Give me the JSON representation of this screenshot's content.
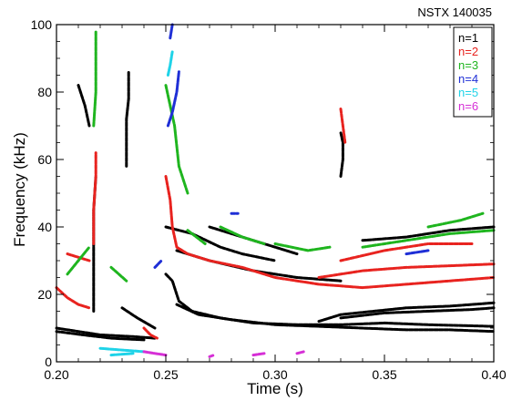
{
  "chart_data": {
    "type": "scatter",
    "shot_label": "NSTX  140035",
    "xlabel": "Time (s)",
    "ylabel": "Frequency (kHz)",
    "xlim": [
      0.2,
      0.4
    ],
    "ylim": [
      0,
      100
    ],
    "xticks": [
      0.2,
      0.25,
      0.3,
      0.35,
      0.4
    ],
    "xtick_labels": [
      "0.20",
      "0.25",
      "0.30",
      "0.35",
      "0.40"
    ],
    "yticks": [
      0,
      20,
      40,
      60,
      80,
      100
    ],
    "ytick_labels": [
      "0",
      "20",
      "40",
      "60",
      "80",
      "100"
    ],
    "grid": false,
    "legend_position": "top-right",
    "series": [
      {
        "name": "n=1",
        "color": "#000000",
        "traces": [
          [
            [
              0.2,
              10
            ],
            [
              0.21,
              9
            ],
            [
              0.22,
              8
            ],
            [
              0.235,
              7.5
            ],
            [
              0.245,
              7
            ]
          ],
          [
            [
              0.2,
              9
            ],
            [
              0.212,
              8
            ],
            [
              0.225,
              7
            ],
            [
              0.24,
              6.5
            ]
          ],
          [
            [
              0.25,
              26
            ],
            [
              0.253,
              24
            ],
            [
              0.256,
              18
            ],
            [
              0.262,
              15
            ],
            [
              0.275,
              13
            ],
            [
              0.29,
              11.5
            ],
            [
              0.31,
              11
            ],
            [
              0.33,
              11
            ],
            [
              0.35,
              11.5
            ],
            [
              0.37,
              11
            ],
            [
              0.4,
              10.5
            ]
          ],
          [
            [
              0.255,
              17
            ],
            [
              0.265,
              14
            ],
            [
              0.28,
              12.5
            ],
            [
              0.3,
              11
            ],
            [
              0.32,
              10.5
            ],
            [
              0.34,
              10
            ],
            [
              0.36,
              9.5
            ],
            [
              0.38,
              9.5
            ],
            [
              0.4,
              9
            ]
          ],
          [
            [
              0.32,
              12
            ],
            [
              0.33,
              14
            ],
            [
              0.345,
              15
            ],
            [
              0.36,
              16
            ],
            [
              0.38,
              16.5
            ],
            [
              0.4,
              17.5
            ]
          ],
          [
            [
              0.33,
              13
            ],
            [
              0.35,
              14.5
            ],
            [
              0.37,
              15
            ],
            [
              0.39,
              15.5
            ],
            [
              0.4,
              16
            ]
          ],
          [
            [
              0.217,
              15
            ],
            [
              0.217,
              25
            ],
            [
              0.217,
              35
            ],
            [
              0.217,
              45
            ],
            [
              0.218,
              55
            ]
          ],
          [
            [
              0.232,
              58
            ],
            [
              0.232,
              65
            ],
            [
              0.232,
              72
            ],
            [
              0.233,
              78
            ],
            [
              0.233,
              86
            ]
          ],
          [
            [
              0.33,
              55
            ],
            [
              0.331,
              60
            ],
            [
              0.331,
              65
            ],
            [
              0.33,
              68
            ]
          ],
          [
            [
              0.25,
              40
            ],
            [
              0.262,
              38
            ],
            [
              0.275,
              34
            ],
            [
              0.285,
              32
            ],
            [
              0.3,
              30
            ]
          ],
          [
            [
              0.27,
              40
            ],
            [
              0.285,
              37
            ],
            [
              0.3,
              34
            ],
            [
              0.31,
              32
            ]
          ],
          [
            [
              0.255,
              33
            ],
            [
              0.27,
              30
            ],
            [
              0.29,
              27
            ],
            [
              0.31,
              25
            ],
            [
              0.33,
              24
            ]
          ],
          [
            [
              0.34,
              36
            ],
            [
              0.36,
              37
            ],
            [
              0.38,
              39
            ],
            [
              0.4,
              40
            ]
          ],
          [
            [
              0.21,
              82
            ],
            [
              0.213,
              76
            ],
            [
              0.215,
              70
            ]
          ],
          [
            [
              0.23,
              16
            ],
            [
              0.237,
              13
            ],
            [
              0.245,
              10
            ]
          ]
        ]
      },
      {
        "name": "n=2",
        "color": "#e8231f",
        "traces": [
          [
            [
              0.2,
              22
            ],
            [
              0.205,
              19
            ],
            [
              0.21,
              17
            ],
            [
              0.215,
              16
            ]
          ],
          [
            [
              0.25,
              55
            ],
            [
              0.252,
              48
            ],
            [
              0.253,
              40
            ],
            [
              0.255,
              34
            ],
            [
              0.26,
              32
            ],
            [
              0.27,
              30
            ],
            [
              0.285,
              28
            ],
            [
              0.3,
              25
            ],
            [
              0.32,
              23
            ],
            [
              0.34,
              22
            ],
            [
              0.36,
              23
            ],
            [
              0.38,
              24
            ],
            [
              0.4,
              25
            ]
          ],
          [
            [
              0.33,
              75
            ],
            [
              0.331,
              70
            ],
            [
              0.332,
              65
            ]
          ],
          [
            [
              0.32,
              25
            ],
            [
              0.34,
              27
            ],
            [
              0.36,
              28
            ],
            [
              0.38,
              28.5
            ],
            [
              0.4,
              29
            ]
          ],
          [
            [
              0.217,
              35
            ],
            [
              0.217,
              45
            ],
            [
              0.218,
              55
            ],
            [
              0.218,
              62
            ]
          ],
          [
            [
              0.24,
              10
            ],
            [
              0.243,
              8
            ],
            [
              0.246,
              7
            ]
          ],
          [
            [
              0.33,
              30
            ],
            [
              0.35,
              33
            ],
            [
              0.37,
              35
            ],
            [
              0.39,
              35
            ]
          ],
          [
            [
              0.205,
              32
            ],
            [
              0.215,
              30
            ]
          ]
        ]
      },
      {
        "name": "n=3",
        "color": "#1fb51f",
        "traces": [
          [
            [
              0.217,
              70
            ],
            [
              0.218,
              80
            ],
            [
              0.218,
              90
            ],
            [
              0.218,
              98
            ]
          ],
          [
            [
              0.25,
              82
            ],
            [
              0.252,
              76
            ],
            [
              0.254,
              70
            ],
            [
              0.256,
              58
            ],
            [
              0.26,
              50
            ]
          ],
          [
            [
              0.275,
              40
            ],
            [
              0.285,
              37
            ],
            [
              0.295,
              35
            ]
          ],
          [
            [
              0.3,
              35
            ],
            [
              0.315,
              33
            ],
            [
              0.325,
              34
            ]
          ],
          [
            [
              0.34,
              34
            ],
            [
              0.36,
              36
            ],
            [
              0.38,
              38
            ],
            [
              0.4,
              39
            ]
          ],
          [
            [
              0.37,
              40
            ],
            [
              0.385,
              42
            ],
            [
              0.395,
              44
            ]
          ],
          [
            [
              0.205,
              26
            ],
            [
              0.21,
              30
            ],
            [
              0.215,
              34
            ]
          ],
          [
            [
              0.225,
              28
            ],
            [
              0.232,
              24
            ]
          ],
          [
            [
              0.26,
              39
            ],
            [
              0.268,
              35
            ]
          ]
        ]
      },
      {
        "name": "n=4",
        "color": "#1f2fd6",
        "traces": [
          [
            [
              0.251,
              70
            ],
            [
              0.253,
              74
            ],
            [
              0.255,
              80
            ],
            [
              0.256,
              86
            ]
          ],
          [
            [
              0.252,
              96
            ],
            [
              0.253,
              100
            ]
          ],
          [
            [
              0.245,
              28
            ],
            [
              0.248,
              30
            ]
          ],
          [
            [
              0.36,
              32
            ],
            [
              0.37,
              33
            ]
          ],
          [
            [
              0.28,
              44
            ],
            [
              0.283,
              44
            ]
          ]
        ]
      },
      {
        "name": "n=5",
        "color": "#1fd3e8",
        "traces": [
          [
            [
              0.22,
              4
            ],
            [
              0.23,
              3.5
            ],
            [
              0.24,
              3
            ]
          ],
          [
            [
              0.251,
              85
            ],
            [
              0.252,
              88
            ],
            [
              0.253,
              92
            ]
          ],
          [
            [
              0.225,
              2
            ],
            [
              0.235,
              2.5
            ]
          ]
        ]
      },
      {
        "name": "n=6",
        "color": "#d62fd6",
        "traces": [
          [
            [
              0.24,
              3
            ],
            [
              0.245,
              2.5
            ],
            [
              0.25,
              2
            ]
          ],
          [
            [
              0.29,
              2
            ],
            [
              0.295,
              2.5
            ]
          ],
          [
            [
              0.31,
              2.5
            ],
            [
              0.313,
              3
            ]
          ],
          [
            [
              0.27,
              1.5
            ],
            [
              0.272,
              2
            ]
          ]
        ]
      }
    ]
  }
}
